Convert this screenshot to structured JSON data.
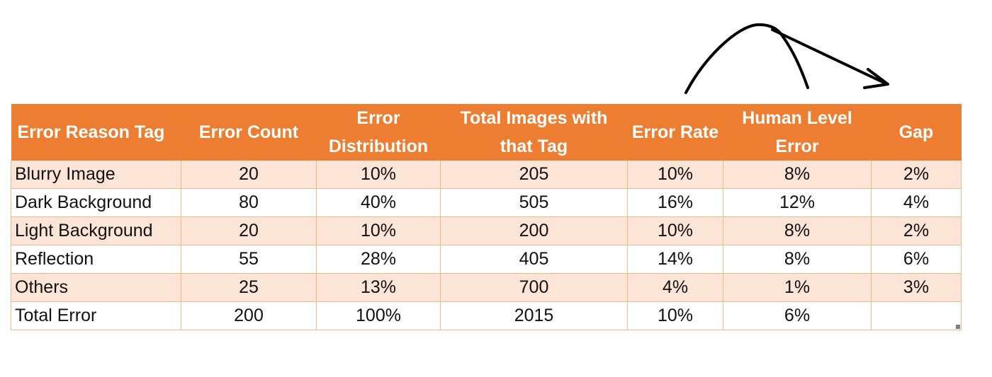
{
  "table": {
    "headers": [
      "Error Reason Tag",
      "Error Count",
      "Error Distribution",
      "Total Images with that Tag",
      "Error Rate",
      "Human Level Error",
      "Gap"
    ],
    "rows": [
      [
        "Blurry Image",
        "20",
        "10%",
        "205",
        "10%",
        "8%",
        "2%"
      ],
      [
        "Dark Background",
        "80",
        "40%",
        "505",
        "16%",
        "12%",
        "4%"
      ],
      [
        "Light Background",
        "20",
        "10%",
        "200",
        "10%",
        "8%",
        "2%"
      ],
      [
        "Reflection",
        "55",
        "28%",
        "405",
        "14%",
        "8%",
        "6%"
      ],
      [
        "Others",
        "25",
        "13%",
        "700",
        "4%",
        "1%",
        "3%"
      ],
      [
        "Total Error",
        "200",
        "100%",
        "2015",
        "10%",
        "6%",
        ""
      ]
    ]
  },
  "colors": {
    "header_bg": "#ed7d31",
    "band_bg": "#fce4d6",
    "border": "#f2b98c",
    "annotation_ink": "#000000"
  },
  "annotation": {
    "type": "hand-drawn-arrow",
    "icon": "curved-arrow-icon"
  }
}
